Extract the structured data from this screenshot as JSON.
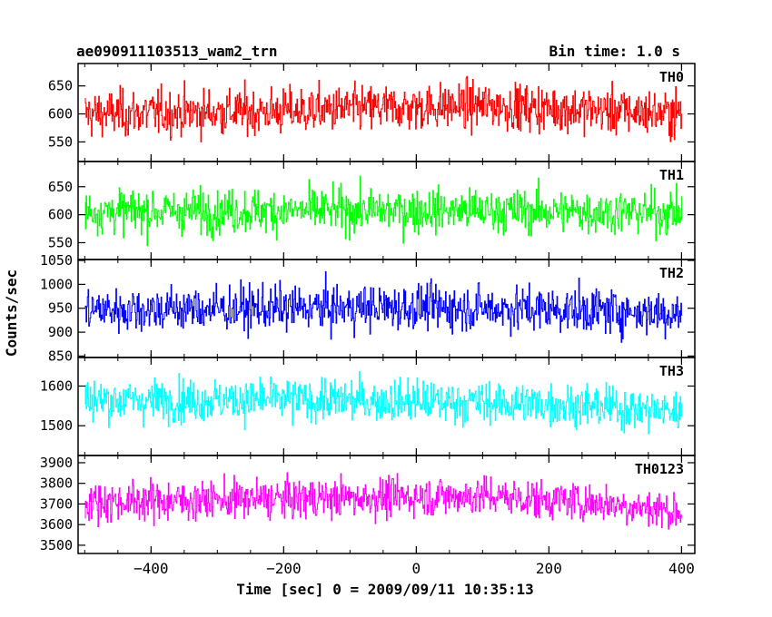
{
  "header": {
    "title": "ae090911103513_wam2_trn",
    "bin_time": "Bin time: 1.0 s"
  },
  "chart_data": {
    "type": "line",
    "xlabel": "Time [sec] 0 = 2009/09/11 10:35:13",
    "ylabel": "Counts/sec",
    "xlim": [
      -510,
      420
    ],
    "x_ticks": [
      -400,
      -200,
      0,
      200,
      400
    ],
    "x_tick_labels": [
      "−400",
      "−200",
      "0",
      "200",
      "400"
    ],
    "x_range": [
      -500,
      400
    ],
    "grid": false,
    "panels": [
      {
        "name": "TH0",
        "color": "#ff0000",
        "ylim": [
          515,
          690
        ],
        "y_ticks": [
          550,
          600,
          650
        ],
        "y_tick_labels": [
          "550",
          "600",
          "650"
        ],
        "trend": [
          [
            -500,
            600
          ],
          [
            -200,
            605
          ],
          [
            0,
            612
          ],
          [
            100,
            615
          ],
          [
            300,
            605
          ],
          [
            400,
            600
          ]
        ],
        "noise": 35
      },
      {
        "name": "TH1",
        "color": "#00ff00",
        "ylim": [
          520,
          695
        ],
        "y_ticks": [
          550,
          600,
          650
        ],
        "y_tick_labels": [
          "550",
          "600",
          "650"
        ],
        "trend": [
          [
            -500,
            606
          ],
          [
            -200,
            607
          ],
          [
            0,
            608
          ],
          [
            200,
            606
          ],
          [
            400,
            604
          ]
        ],
        "noise": 33
      },
      {
        "name": "TH2",
        "color": "#0000ff",
        "ylim": [
          847,
          1052
        ],
        "y_ticks": [
          850,
          900,
          950,
          1000,
          1050
        ],
        "y_tick_labels": [
          "850",
          "900",
          "950",
          "1000",
          "1050"
        ],
        "trend": [
          [
            -500,
            947
          ],
          [
            -200,
            950
          ],
          [
            0,
            952
          ],
          [
            200,
            948
          ],
          [
            400,
            940
          ]
        ],
        "noise": 40
      },
      {
        "name": "TH3",
        "color": "#00ffff",
        "ylim": [
          1425,
          1672
        ],
        "y_ticks": [
          1500,
          1600
        ],
        "y_tick_labels": [
          "1500",
          "1600"
        ],
        "trend": [
          [
            -500,
            1565
          ],
          [
            -200,
            1565
          ],
          [
            0,
            1562
          ],
          [
            200,
            1555
          ],
          [
            400,
            1535
          ]
        ],
        "noise": 45
      },
      {
        "name": "TH0123",
        "color": "#ff00ff",
        "ylim": [
          3460,
          3935
        ],
        "y_ticks": [
          3500,
          3600,
          3700,
          3800,
          3900
        ],
        "y_tick_labels": [
          "3500",
          "3600",
          "3700",
          "3800",
          "3900"
        ],
        "trend": [
          [
            -500,
            3710
          ],
          [
            -200,
            3725
          ],
          [
            0,
            3735
          ],
          [
            100,
            3740
          ],
          [
            300,
            3700
          ],
          [
            400,
            3660
          ]
        ],
        "noise": 80
      }
    ]
  }
}
